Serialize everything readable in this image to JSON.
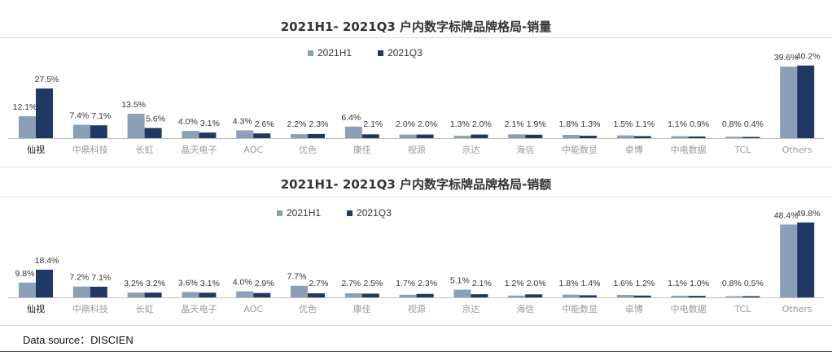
{
  "colors": {
    "h1": "#8c9fb8",
    "q3": "#1f3864"
  },
  "footer": {
    "source": "Data source：DISCIEN"
  },
  "chart_data": [
    {
      "type": "bar",
      "title": "2021H1- 2021Q3 户内数字标牌品牌格局-销量",
      "categories": [
        "仙视",
        "中鼎科技",
        "长虹",
        "晶天电子",
        "AOC",
        "优色",
        "康佳",
        "视源",
        "京达",
        "海信",
        "中能数显",
        "卓博",
        "中电数据",
        "TCL",
        "Others"
      ],
      "series": [
        {
          "name": "2021H1",
          "values": [
            12.1,
            7.4,
            13.5,
            4.0,
            4.3,
            2.2,
            6.4,
            2.0,
            1.3,
            2.1,
            1.8,
            1.5,
            1.1,
            0.8,
            39.6
          ],
          "labels": [
            "12.1%",
            "7.4%",
            "13.5%",
            "4.0%",
            "4.3%",
            "2.2%",
            "6.4%",
            "2.0%",
            "1.3%",
            "2.1%",
            "1.8%",
            "1.5%",
            "1.1%",
            "0.8%",
            "39.6%"
          ]
        },
        {
          "name": "2021Q3",
          "values": [
            27.5,
            7.1,
            5.6,
            3.1,
            2.6,
            2.3,
            2.1,
            2.0,
            2.0,
            1.9,
            1.3,
            1.1,
            0.9,
            0.4,
            40.2
          ],
          "labels": [
            "27.5%",
            "7.1%",
            "5.6%",
            "3.1%",
            "2.6%",
            "2.3%",
            "2.1%",
            "2.0%",
            "2.0%",
            "1.9%",
            "1.3%",
            "1.1%",
            "0.9%",
            "0.4%",
            "40.2%"
          ]
        }
      ],
      "ylim": [
        0,
        45
      ],
      "legend": "top-center",
      "grid": false
    },
    {
      "type": "bar",
      "title": "2021H1- 2021Q3 户内数字标牌品牌格局-销额",
      "categories": [
        "仙视",
        "中鼎科技",
        "长虹",
        "晶天电子",
        "AOC",
        "优色",
        "康佳",
        "视源",
        "京达",
        "海信",
        "中能数显",
        "卓博",
        "中电数据",
        "TCL",
        "Others"
      ],
      "series": [
        {
          "name": "2021H1",
          "values": [
            9.8,
            7.2,
            3.2,
            3.6,
            4.0,
            7.7,
            2.7,
            1.7,
            5.1,
            1.2,
            1.8,
            1.6,
            1.1,
            0.8,
            48.4
          ],
          "labels": [
            "9.8%",
            "7.2%",
            "3.2%",
            "3.6%",
            "4.0%",
            "7.7%",
            "2.7%",
            "1.7%",
            "5.1%",
            "1.2%",
            "1.8%",
            "1.6%",
            "1.1%",
            "0.8%",
            "48.4%"
          ]
        },
        {
          "name": "2021Q3",
          "values": [
            18.4,
            7.1,
            3.2,
            3.1,
            2.9,
            2.7,
            2.5,
            2.3,
            2.1,
            2.0,
            1.4,
            1.2,
            1.0,
            0.5,
            49.8
          ],
          "labels": [
            "18.4%",
            "7.1%",
            "3.2%",
            "3.1%",
            "2.9%",
            "2.7%",
            "2.5%",
            "2.3%",
            "2.1%",
            "2.0%",
            "1.4%",
            "1.2%",
            "1.0%",
            "0.5%",
            "49.8%"
          ]
        }
      ],
      "ylim": [
        0,
        54
      ],
      "legend": "top-center",
      "grid": false
    }
  ]
}
